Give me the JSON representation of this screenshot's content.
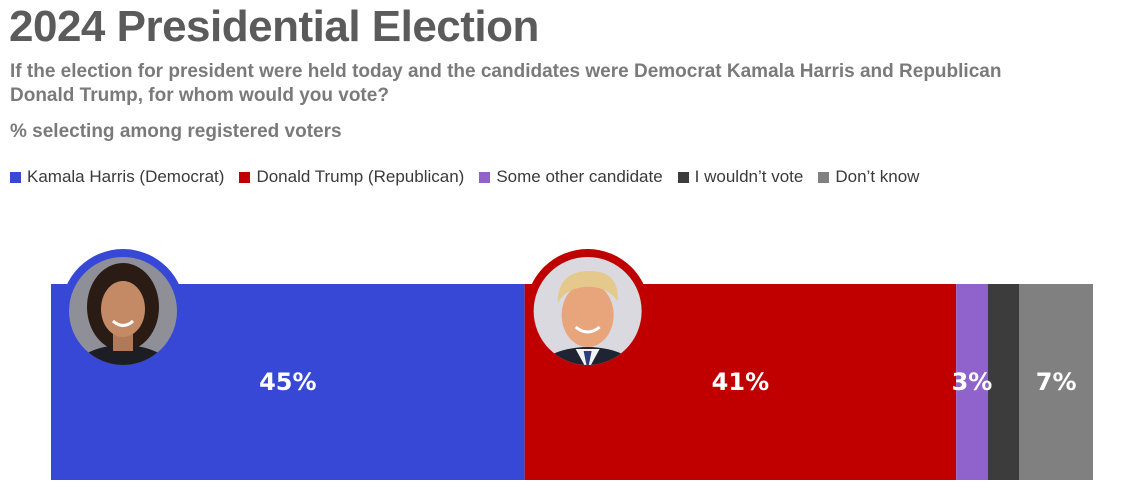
{
  "chart_data": {
    "type": "bar",
    "orientation": "horizontal-stacked",
    "title": "2024 Presidential Election",
    "subtitle": "If the election for president were held today and the candidates were Democrat Kamala Harris and Republican Donald Trump, for whom would you vote?",
    "note": "% selecting among registered voters",
    "legend_placement": "top",
    "series": [
      {
        "name": "Kamala Harris (Democrat)",
        "value": 45,
        "label": "45%",
        "color": "#3748d6"
      },
      {
        "name": "Donald Trump (Republican)",
        "value": 41,
        "label": "41%",
        "color": "#c00000"
      },
      {
        "name": "Some other candidate",
        "value": 3,
        "label": "3%",
        "color": "#9062cc"
      },
      {
        "name": "I wouldn’t vote",
        "value": 3,
        "label": "",
        "color": "#3c3c3c"
      },
      {
        "name": "Don’t know",
        "value": 7,
        "label": "7%",
        "color": "#808080"
      }
    ],
    "icons": [
      {
        "name": "harris-portrait-icon",
        "series_index": 0,
        "ring_color": "#3748d6"
      },
      {
        "name": "trump-portrait-icon",
        "series_index": 1,
        "ring_color": "#c00000"
      }
    ]
  }
}
